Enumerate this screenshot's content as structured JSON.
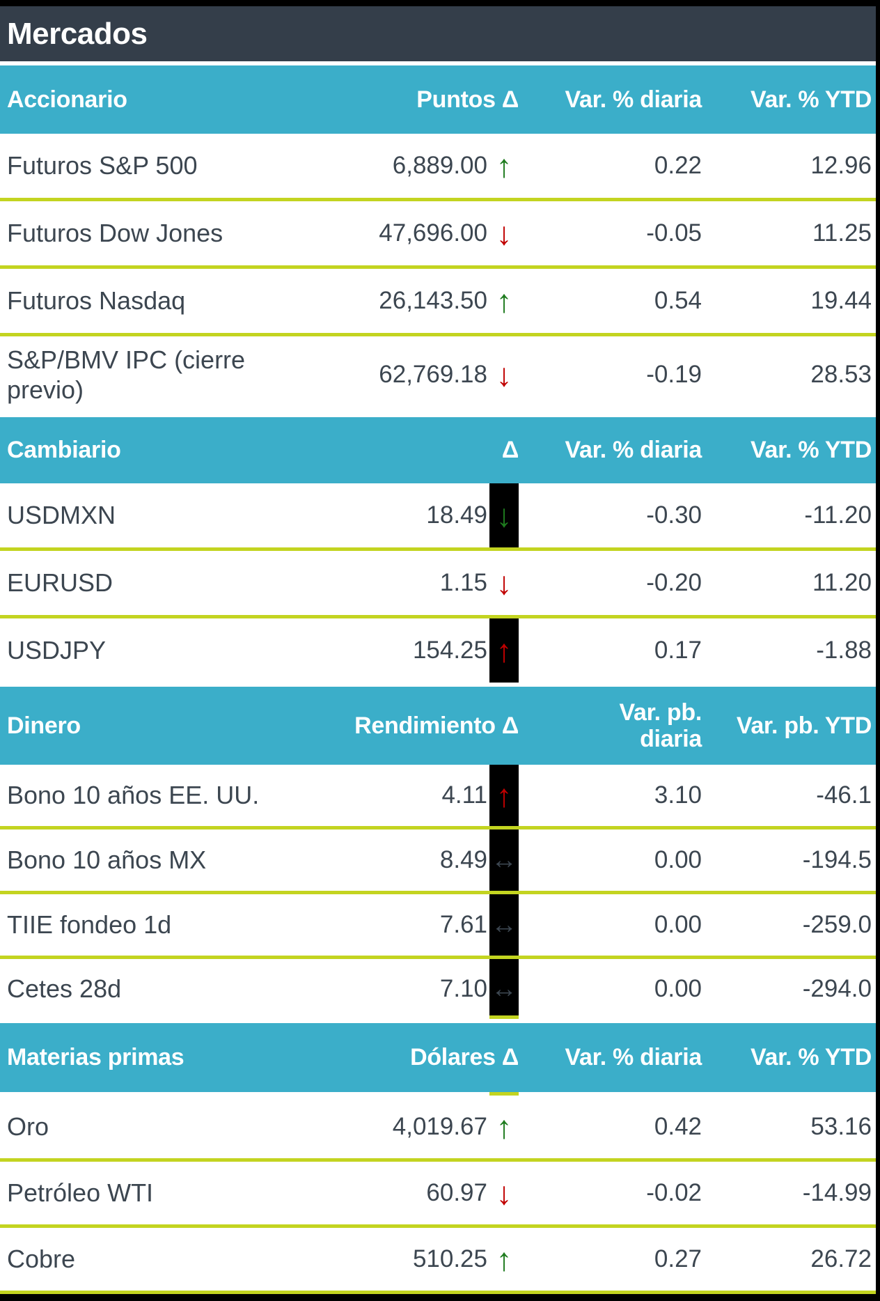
{
  "title": "Mercados",
  "colors": {
    "header_bar": "#343E4A",
    "section_header": "#3BAEC9",
    "separator": "#C3D420",
    "positive": "#1E7B1E",
    "negative": "#C00000",
    "neutral_arrow": "#3C4650",
    "text": "#3C4650",
    "arrow_highlight_bg": "#000000"
  },
  "sections": [
    {
      "name": "Accionario",
      "headers": {
        "delta": "Puntos Δ",
        "diaria": "Var. % diaria",
        "ytd": "Var. % YTD"
      },
      "rows": [
        {
          "label": "Futuros S&P 500",
          "value": "6,889.00",
          "arrow": {
            "dir": "up",
            "color": "positive",
            "bg": "none"
          },
          "diaria": "0.22",
          "ytd": "12.96"
        },
        {
          "label": "Futuros Dow Jones",
          "value": "47,696.00",
          "arrow": {
            "dir": "down",
            "color": "negative",
            "bg": "none"
          },
          "diaria": "-0.05",
          "ytd": "11.25"
        },
        {
          "label": "Futuros Nasdaq",
          "value": "26,143.50",
          "arrow": {
            "dir": "up",
            "color": "positive",
            "bg": "none"
          },
          "diaria": "0.54",
          "ytd": "19.44"
        },
        {
          "label": "S&P/BMV IPC (cierre previo)",
          "value": "62,769.18",
          "arrow": {
            "dir": "down",
            "color": "negative",
            "bg": "none"
          },
          "diaria": "-0.19",
          "ytd": "28.53"
        }
      ]
    },
    {
      "name": "Cambiario",
      "headers": {
        "delta": "Δ",
        "diaria": "Var. % diaria",
        "ytd": "Var. % YTD"
      },
      "rows": [
        {
          "label": "USDMXN",
          "value": "18.49",
          "arrow": {
            "dir": "down",
            "color": "positive",
            "bg": "black"
          },
          "diaria": "-0.30",
          "ytd": "-11.20"
        },
        {
          "label": "EURUSD",
          "value": "1.15",
          "arrow": {
            "dir": "down",
            "color": "negative",
            "bg": "none"
          },
          "diaria": "-0.20",
          "ytd": "11.20"
        },
        {
          "label": "USDJPY",
          "value": "154.25",
          "arrow": {
            "dir": "up",
            "color": "negative",
            "bg": "black"
          },
          "diaria": "0.17",
          "ytd": "-1.88"
        }
      ]
    },
    {
      "name": "Dinero",
      "headers": {
        "delta": "Rendimiento Δ",
        "diaria": "Var. pb. diaria",
        "ytd": "Var. pb. YTD"
      },
      "rows": [
        {
          "label": "Bono 10 años EE. UU.",
          "value": "4.11",
          "arrow": {
            "dir": "up",
            "color": "negative",
            "bg": "black"
          },
          "diaria": "3.10",
          "ytd": "-46.1"
        },
        {
          "label": "Bono 10 años MX",
          "value": "8.49",
          "arrow": {
            "dir": "flat",
            "color": "neutral",
            "bg": "black"
          },
          "diaria": "0.00",
          "ytd": "-194.5"
        },
        {
          "label": "TIIE fondeo 1d",
          "value": "7.61",
          "arrow": {
            "dir": "flat",
            "color": "neutral",
            "bg": "black"
          },
          "diaria": "0.00",
          "ytd": "-259.0"
        },
        {
          "label": "Cetes 28d",
          "value": "7.10",
          "arrow": {
            "dir": "flat",
            "color": "neutral",
            "bg": "black"
          },
          "diaria": "0.00",
          "ytd": "-294.0"
        }
      ]
    },
    {
      "name": "Materias primas",
      "headers": {
        "delta": "Dólares Δ",
        "diaria": "Var. % diaria",
        "ytd": "Var. % YTD"
      },
      "rows": [
        {
          "label": "Oro",
          "value": "4,019.67",
          "arrow": {
            "dir": "up",
            "color": "positive",
            "bg": "none"
          },
          "diaria": "0.42",
          "ytd": "53.16"
        },
        {
          "label": "Petróleo WTI",
          "value": "60.97",
          "arrow": {
            "dir": "down",
            "color": "negative",
            "bg": "none"
          },
          "diaria": "-0.02",
          "ytd": "-14.99"
        },
        {
          "label": "Cobre",
          "value": "510.25",
          "arrow": {
            "dir": "up",
            "color": "positive",
            "bg": "none"
          },
          "diaria": "0.27",
          "ytd": "26.72"
        }
      ]
    }
  ]
}
